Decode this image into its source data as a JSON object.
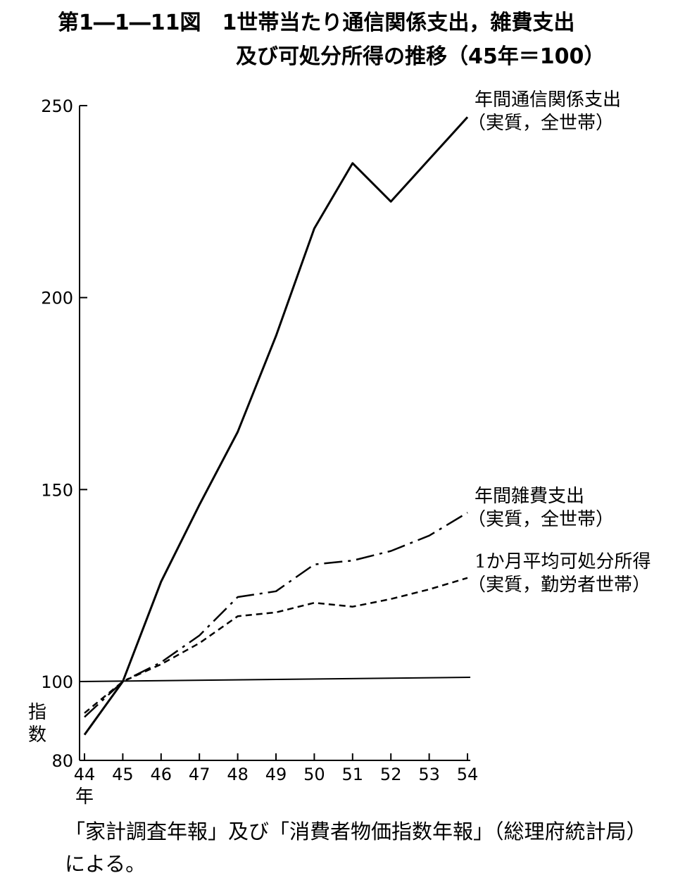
{
  "title": {
    "line1": "第1―1―11図　1世帯当たり通信関係支出，雑費支出",
    "line2": "及び可処分所得の推移（45年＝100）"
  },
  "source_note": "「家計調査年報」及び「消費者物価指数年報」（総理府統計局）による。",
  "chart_data": {
    "type": "line",
    "x": [
      "44",
      "45",
      "46",
      "47",
      "48",
      "49",
      "50",
      "51",
      "52",
      "53",
      "54"
    ],
    "x_unit": "年",
    "ylabel": "指数",
    "yticks": [
      80,
      100,
      150,
      200,
      250
    ],
    "ylim": [
      80,
      250
    ],
    "reference_line": 100,
    "series": [
      {
        "name_line1": "年間通信関係支出",
        "name_line2": "（実質，全世帯）",
        "style": "solid",
        "values": [
          86.5,
          100,
          126,
          146,
          165,
          190,
          218,
          235,
          225,
          236,
          247
        ]
      },
      {
        "name_line1": "年間雑費支出",
        "name_line2": "（実質，全世帯）",
        "style": "dashdot",
        "values": [
          91,
          100,
          105,
          112,
          122,
          123.5,
          130.5,
          131.5,
          134,
          138,
          144
        ]
      },
      {
        "name_line1": "1か月平均可処分所得",
        "name_line2": "（実質，勤労者世帯）",
        "style": "dashed",
        "values": [
          92,
          100,
          104.5,
          110,
          117,
          118,
          120.5,
          119.5,
          121.5,
          124,
          127
        ]
      }
    ]
  }
}
